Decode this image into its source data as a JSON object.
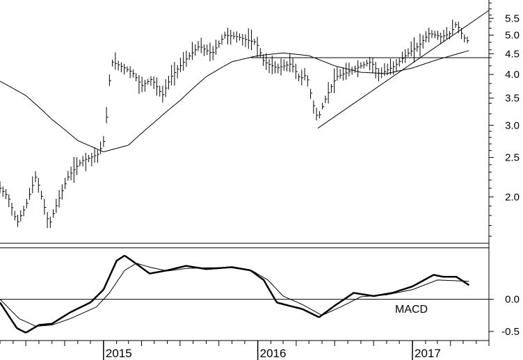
{
  "chart_data": [
    {
      "type": "ohlc",
      "panel": "price",
      "title": "",
      "y_scale": "log",
      "ylim": [
        1.55,
        6.1
      ],
      "y_ticks": [
        {
          "value": 2.0,
          "label": "2.0"
        },
        {
          "value": 2.5,
          "label": "2.5"
        },
        {
          "value": 3.0,
          "label": "3.0"
        },
        {
          "value": 3.5,
          "label": "3.5"
        },
        {
          "value": 4.0,
          "label": "4.0"
        },
        {
          "value": 4.5,
          "label": "4.5"
        },
        {
          "value": 5.0,
          "label": "5.0"
        },
        {
          "value": 5.5,
          "label": "5.5"
        }
      ],
      "minor_ticks": [
        1.6,
        1.7,
        1.8,
        1.9,
        2.1,
        2.2,
        2.3,
        2.4,
        2.6,
        2.7,
        2.8,
        2.9,
        3.2,
        3.4,
        3.6,
        3.8,
        4.2,
        4.4,
        4.6,
        4.8,
        5.2,
        5.4,
        5.6,
        5.8,
        6.0
      ],
      "x_range": [
        "2014-05-01",
        "2017-07-01"
      ],
      "x_labels": [
        {
          "date": "2015-01-01",
          "label": "2015"
        },
        {
          "date": "2016-01-01",
          "label": "2016"
        },
        {
          "date": "2017-01-01",
          "label": "2017"
        }
      ],
      "price_anchors": [
        [
          "2014-05-01",
          2.1
        ],
        [
          "2014-05-20",
          2.0
        ],
        [
          "2014-06-10",
          1.72
        ],
        [
          "2014-07-01",
          1.9
        ],
        [
          "2014-07-25",
          2.25
        ],
        [
          "2014-08-10",
          1.95
        ],
        [
          "2014-08-25",
          1.7
        ],
        [
          "2014-09-15",
          1.95
        ],
        [
          "2014-10-10",
          2.25
        ],
        [
          "2014-11-10",
          2.45
        ],
        [
          "2014-12-01",
          2.5
        ],
        [
          "2014-12-20",
          2.55
        ],
        [
          "2015-01-05",
          2.8
        ],
        [
          "2015-01-12",
          3.6
        ],
        [
          "2015-01-20",
          4.3
        ],
        [
          "2015-02-10",
          4.2
        ],
        [
          "2015-03-10",
          4.05
        ],
        [
          "2015-04-01",
          3.75
        ],
        [
          "2015-04-25",
          3.9
        ],
        [
          "2015-05-20",
          3.55
        ],
        [
          "2015-06-10",
          3.95
        ],
        [
          "2015-07-10",
          4.3
        ],
        [
          "2015-08-15",
          4.7
        ],
        [
          "2015-09-15",
          4.5
        ],
        [
          "2015-10-15",
          5.0
        ],
        [
          "2015-11-15",
          4.95
        ],
        [
          "2015-12-10",
          4.85
        ],
        [
          "2015-12-28",
          4.8
        ],
        [
          "2016-01-15",
          4.3
        ],
        [
          "2016-02-15",
          4.15
        ],
        [
          "2016-03-20",
          4.25
        ],
        [
          "2016-04-10",
          3.9
        ],
        [
          "2016-04-25",
          4.0
        ],
        [
          "2016-05-10",
          3.4
        ],
        [
          "2016-05-22",
          3.1
        ],
        [
          "2016-06-10",
          3.5
        ],
        [
          "2016-07-05",
          3.95
        ],
        [
          "2016-08-01",
          4.05
        ],
        [
          "2016-09-01",
          4.2
        ],
        [
          "2016-09-25",
          4.3
        ],
        [
          "2016-10-15",
          4.0
        ],
        [
          "2016-11-20",
          4.2
        ],
        [
          "2016-12-20",
          4.5
        ],
        [
          "2017-01-15",
          4.7
        ],
        [
          "2017-02-10",
          5.05
        ],
        [
          "2017-03-10",
          4.95
        ],
        [
          "2017-04-01",
          5.05
        ],
        [
          "2017-04-15",
          5.35
        ],
        [
          "2017-05-01",
          4.95
        ],
        [
          "2017-05-15",
          4.8
        ]
      ],
      "moving_average_anchors": [
        [
          "2014-05-01",
          3.85
        ],
        [
          "2014-07-01",
          3.55
        ],
        [
          "2014-09-01",
          3.1
        ],
        [
          "2014-11-01",
          2.75
        ],
        [
          "2015-01-01",
          2.58
        ],
        [
          "2015-03-01",
          2.68
        ],
        [
          "2015-05-01",
          3.05
        ],
        [
          "2015-07-01",
          3.45
        ],
        [
          "2015-09-01",
          3.95
        ],
        [
          "2015-11-01",
          4.3
        ],
        [
          "2016-01-01",
          4.45
        ],
        [
          "2016-03-01",
          4.52
        ],
        [
          "2016-05-01",
          4.45
        ],
        [
          "2016-07-01",
          4.2
        ],
        [
          "2016-09-01",
          4.05
        ],
        [
          "2016-11-01",
          4.02
        ],
        [
          "2017-01-01",
          4.15
        ],
        [
          "2017-03-01",
          4.35
        ],
        [
          "2017-05-15",
          4.58
        ]
      ],
      "horizontal_line": 4.4,
      "trendline": {
        "start": [
          "2016-05-22",
          2.95
        ],
        "end": [
          "2017-07-01",
          5.75
        ]
      }
    },
    {
      "type": "line",
      "panel": "macd",
      "ylim": [
        -0.62,
        0.85
      ],
      "y_ticks": [
        {
          "value": 0.0,
          "label": "0.0"
        },
        {
          "value": -0.5,
          "label": "-0.5"
        }
      ],
      "upper_line": 0.8,
      "zero_line": 0.0,
      "annotation": "MACD",
      "macd_anchors": [
        [
          "2014-05-01",
          -0.05
        ],
        [
          "2014-06-10",
          -0.45
        ],
        [
          "2014-07-01",
          -0.52
        ],
        [
          "2014-08-01",
          -0.4
        ],
        [
          "2014-09-01",
          -0.38
        ],
        [
          "2014-10-15",
          -0.2
        ],
        [
          "2014-12-01",
          -0.05
        ],
        [
          "2015-01-01",
          0.15
        ],
        [
          "2015-02-01",
          0.6
        ],
        [
          "2015-02-20",
          0.68
        ],
        [
          "2015-03-20",
          0.55
        ],
        [
          "2015-04-20",
          0.4
        ],
        [
          "2015-06-01",
          0.45
        ],
        [
          "2015-07-15",
          0.52
        ],
        [
          "2015-09-01",
          0.47
        ],
        [
          "2015-11-01",
          0.5
        ],
        [
          "2015-12-15",
          0.45
        ],
        [
          "2016-01-15",
          0.3
        ],
        [
          "2016-02-15",
          -0.05
        ],
        [
          "2016-03-15",
          -0.1
        ],
        [
          "2016-04-15",
          -0.15
        ],
        [
          "2016-05-25",
          -0.28
        ],
        [
          "2016-07-01",
          -0.1
        ],
        [
          "2016-08-15",
          0.1
        ],
        [
          "2016-10-01",
          0.05
        ],
        [
          "2016-11-15",
          0.1
        ],
        [
          "2017-01-01",
          0.2
        ],
        [
          "2017-02-20",
          0.38
        ],
        [
          "2017-03-15",
          0.35
        ],
        [
          "2017-04-15",
          0.35
        ],
        [
          "2017-05-15",
          0.22
        ]
      ],
      "signal_anchors": [
        [
          "2014-05-01",
          0.0
        ],
        [
          "2014-06-15",
          -0.3
        ],
        [
          "2014-07-25",
          -0.42
        ],
        [
          "2014-09-01",
          -0.4
        ],
        [
          "2014-10-15",
          -0.3
        ],
        [
          "2014-12-15",
          -0.12
        ],
        [
          "2015-01-15",
          0.1
        ],
        [
          "2015-02-20",
          0.45
        ],
        [
          "2015-03-20",
          0.56
        ],
        [
          "2015-04-20",
          0.5
        ],
        [
          "2015-06-01",
          0.44
        ],
        [
          "2015-07-15",
          0.48
        ],
        [
          "2015-09-01",
          0.49
        ],
        [
          "2015-11-01",
          0.49
        ],
        [
          "2015-12-20",
          0.44
        ],
        [
          "2016-01-25",
          0.3
        ],
        [
          "2016-03-01",
          0.05
        ],
        [
          "2016-04-15",
          -0.08
        ],
        [
          "2016-06-01",
          -0.25
        ],
        [
          "2016-07-15",
          -0.12
        ],
        [
          "2016-09-01",
          0.04
        ],
        [
          "2016-11-01",
          0.07
        ],
        [
          "2017-01-01",
          0.15
        ],
        [
          "2017-03-01",
          0.3
        ],
        [
          "2017-05-15",
          0.28
        ]
      ]
    }
  ]
}
